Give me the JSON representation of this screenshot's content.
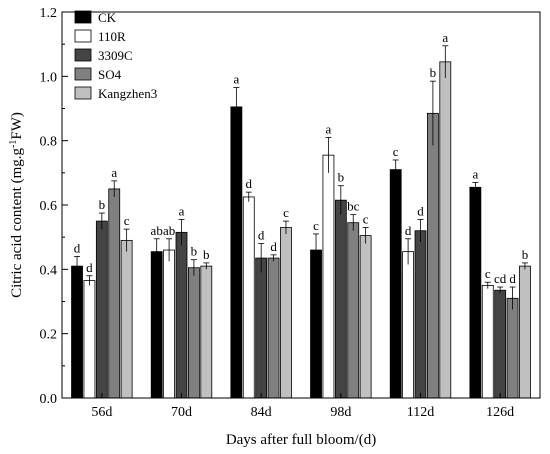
{
  "chart_data": {
    "type": "bar",
    "title": "",
    "xlabel": "Days after full bloom/(d)",
    "ylabel": "Citric acid content (mg.g",
    "ylabel_sup": "-1",
    "ylabel_tail": "FW)",
    "ylim": [
      0,
      1.2
    ],
    "yticks": [
      "0.0",
      "0.2",
      "0.4",
      "0.6",
      "0.8",
      "1.0",
      "1.2"
    ],
    "categories": [
      "56d",
      "70d",
      "84d",
      "98d",
      "112d",
      "126d"
    ],
    "legend_position": "top-left",
    "series": [
      {
        "name": "CK",
        "color": "#000000",
        "values": [
          0.41,
          0.455,
          0.905,
          0.46,
          0.71,
          0.655
        ],
        "errors": [
          0.03,
          0.04,
          0.06,
          0.05,
          0.03,
          0.015
        ],
        "labels": [
          "d",
          "ab",
          "a",
          "c",
          "c",
          "a"
        ]
      },
      {
        "name": "110R",
        "color": "#ffffff",
        "values": [
          0.365,
          0.46,
          0.625,
          0.755,
          0.455,
          0.35
        ],
        "errors": [
          0.015,
          0.035,
          0.015,
          0.055,
          0.04,
          0.01
        ],
        "labels": [
          "d",
          "ab",
          "d",
          "a",
          "d",
          "c"
        ]
      },
      {
        "name": "3309C",
        "color": "#444444",
        "values": [
          0.55,
          0.515,
          0.435,
          0.615,
          0.52,
          0.335
        ],
        "errors": [
          0.025,
          0.04,
          0.045,
          0.045,
          0.035,
          0.01
        ],
        "labels": [
          "b",
          "a",
          "d",
          "b",
          "d",
          "cd"
        ]
      },
      {
        "name": "SO4",
        "color": "#808080",
        "values": [
          0.65,
          0.405,
          0.435,
          0.545,
          0.885,
          0.31
        ],
        "errors": [
          0.025,
          0.025,
          0.01,
          0.025,
          0.1,
          0.035
        ],
        "labels": [
          "a",
          "b",
          "d",
          "bc",
          "b",
          "d"
        ]
      },
      {
        "name": "Kangzhen3",
        "color": "#c0c0c0",
        "values": [
          0.49,
          0.41,
          0.53,
          0.505,
          1.045,
          0.41
        ],
        "errors": [
          0.035,
          0.01,
          0.02,
          0.025,
          0.05,
          0.01
        ],
        "labels": [
          "c",
          "b",
          "c",
          "c",
          "a",
          "b"
        ]
      }
    ]
  }
}
